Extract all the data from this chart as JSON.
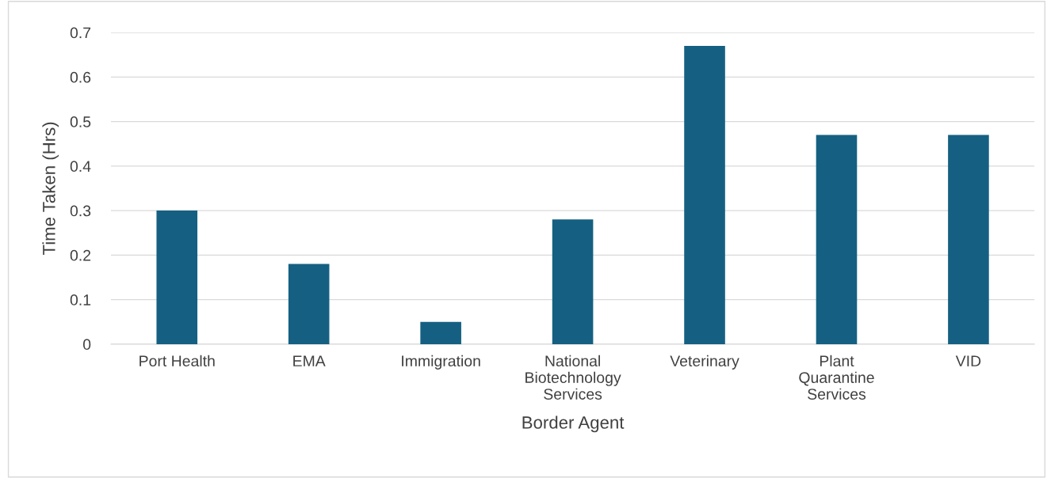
{
  "chart_data": {
    "type": "bar",
    "xlabel": "Border Agent",
    "ylabel": "Time Taken (Hrs)",
    "categories": [
      "Port Health",
      "EMA",
      "Immigration",
      "National\nBiotechnology\nServices",
      "Veterinary",
      "Plant\nQuarantine\nServices",
      "VID"
    ],
    "values": [
      0.3,
      0.18,
      0.05,
      0.28,
      0.67,
      0.47,
      0.47
    ],
    "color": "#156082",
    "ylim": [
      0,
      0.7
    ],
    "yticks": [
      {
        "value": 0,
        "label": "0"
      },
      0.1,
      0.2,
      0.3,
      0.4,
      0.5,
      0.6,
      0.7
    ],
    "grid": "y",
    "legend": false
  }
}
